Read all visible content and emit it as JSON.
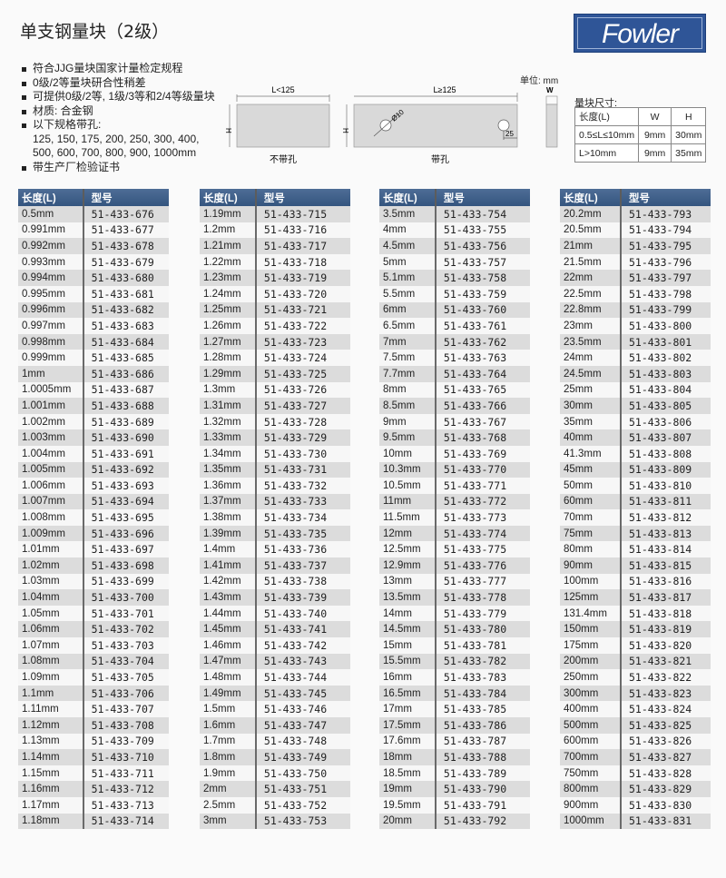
{
  "title": "单支钢量块（2级）",
  "logo": "Fowler",
  "colors": {
    "header": "#3d5a85",
    "logo_bg": "#2f5597",
    "stripe": "#dcdcdc"
  },
  "features": [
    "符合JJG量块国家计量检定规程",
    "0级/2等量块研合性稍差",
    "可提供0级/2等, 1级/3等和2/4等级量块",
    "材质: 合金钢",
    "以下规格带孔:",
    "125, 150, 175, 200, 250, 300, 400,",
    "500, 600, 700, 800, 900, 1000mm",
    "带生产厂检验证书"
  ],
  "diagram": {
    "unit": "单位: mm",
    "left_len": "L<125",
    "left_cap": "不带孔",
    "right_len": "L≥125",
    "right_cap": "带孔",
    "hole": "Ø10",
    "offset": "25",
    "h": "H",
    "w": "W"
  },
  "dims": {
    "caption": "量块尺寸:",
    "headers": [
      "长度(L)",
      "W",
      "H"
    ],
    "rows": [
      [
        "0.5≤L≤10mm",
        "9mm",
        "30mm"
      ],
      [
        "L>10mm",
        "9mm",
        "35mm"
      ]
    ]
  },
  "table_headers": [
    "长度(L)",
    "型号"
  ],
  "tables": [
    [
      [
        "0.5mm",
        "51-433-676"
      ],
      [
        "0.991mm",
        "51-433-677"
      ],
      [
        "0.992mm",
        "51-433-678"
      ],
      [
        "0.993mm",
        "51-433-679"
      ],
      [
        "0.994mm",
        "51-433-680"
      ],
      [
        "0.995mm",
        "51-433-681"
      ],
      [
        "0.996mm",
        "51-433-682"
      ],
      [
        "0.997mm",
        "51-433-683"
      ],
      [
        "0.998mm",
        "51-433-684"
      ],
      [
        "0.999mm",
        "51-433-685"
      ],
      [
        "1mm",
        "51-433-686"
      ],
      [
        "1.0005mm",
        "51-433-687"
      ],
      [
        "1.001mm",
        "51-433-688"
      ],
      [
        "1.002mm",
        "51-433-689"
      ],
      [
        "1.003mm",
        "51-433-690"
      ],
      [
        "1.004mm",
        "51-433-691"
      ],
      [
        "1.005mm",
        "51-433-692"
      ],
      [
        "1.006mm",
        "51-433-693"
      ],
      [
        "1.007mm",
        "51-433-694"
      ],
      [
        "1.008mm",
        "51-433-695"
      ],
      [
        "1.009mm",
        "51-433-696"
      ],
      [
        "1.01mm",
        "51-433-697"
      ],
      [
        "1.02mm",
        "51-433-698"
      ],
      [
        "1.03mm",
        "51-433-699"
      ],
      [
        "1.04mm",
        "51-433-700"
      ],
      [
        "1.05mm",
        "51-433-701"
      ],
      [
        "1.06mm",
        "51-433-702"
      ],
      [
        "1.07mm",
        "51-433-703"
      ],
      [
        "1.08mm",
        "51-433-704"
      ],
      [
        "1.09mm",
        "51-433-705"
      ],
      [
        "1.1mm",
        "51-433-706"
      ],
      [
        "1.11mm",
        "51-433-707"
      ],
      [
        "1.12mm",
        "51-433-708"
      ],
      [
        "1.13mm",
        "51-433-709"
      ],
      [
        "1.14mm",
        "51-433-710"
      ],
      [
        "1.15mm",
        "51-433-711"
      ],
      [
        "1.16mm",
        "51-433-712"
      ],
      [
        "1.17mm",
        "51-433-713"
      ],
      [
        "1.18mm",
        "51-433-714"
      ]
    ],
    [
      [
        "1.19mm",
        "51-433-715"
      ],
      [
        "1.2mm",
        "51-433-716"
      ],
      [
        "1.21mm",
        "51-433-717"
      ],
      [
        "1.22mm",
        "51-433-718"
      ],
      [
        "1.23mm",
        "51-433-719"
      ],
      [
        "1.24mm",
        "51-433-720"
      ],
      [
        "1.25mm",
        "51-433-721"
      ],
      [
        "1.26mm",
        "51-433-722"
      ],
      [
        "1.27mm",
        "51-433-723"
      ],
      [
        "1.28mm",
        "51-433-724"
      ],
      [
        "1.29mm",
        "51-433-725"
      ],
      [
        "1.3mm",
        "51-433-726"
      ],
      [
        "1.31mm",
        "51-433-727"
      ],
      [
        "1.32mm",
        "51-433-728"
      ],
      [
        "1.33mm",
        "51-433-729"
      ],
      [
        "1.34mm",
        "51-433-730"
      ],
      [
        "1.35mm",
        "51-433-731"
      ],
      [
        "1.36mm",
        "51-433-732"
      ],
      [
        "1.37mm",
        "51-433-733"
      ],
      [
        "1.38mm",
        "51-433-734"
      ],
      [
        "1.39mm",
        "51-433-735"
      ],
      [
        "1.4mm",
        "51-433-736"
      ],
      [
        "1.41mm",
        "51-433-737"
      ],
      [
        "1.42mm",
        "51-433-738"
      ],
      [
        "1.43mm",
        "51-433-739"
      ],
      [
        "1.44mm",
        "51-433-740"
      ],
      [
        "1.45mm",
        "51-433-741"
      ],
      [
        "1.46mm",
        "51-433-742"
      ],
      [
        "1.47mm",
        "51-433-743"
      ],
      [
        "1.48mm",
        "51-433-744"
      ],
      [
        "1.49mm",
        "51-433-745"
      ],
      [
        "1.5mm",
        "51-433-746"
      ],
      [
        "1.6mm",
        "51-433-747"
      ],
      [
        "1.7mm",
        "51-433-748"
      ],
      [
        "1.8mm",
        "51-433-749"
      ],
      [
        "1.9mm",
        "51-433-750"
      ],
      [
        "2mm",
        "51-433-751"
      ],
      [
        "2.5mm",
        "51-433-752"
      ],
      [
        "3mm",
        "51-433-753"
      ]
    ],
    [
      [
        "3.5mm",
        "51-433-754"
      ],
      [
        "4mm",
        "51-433-755"
      ],
      [
        "4.5mm",
        "51-433-756"
      ],
      [
        "5mm",
        "51-433-757"
      ],
      [
        "5.1mm",
        "51-433-758"
      ],
      [
        "5.5mm",
        "51-433-759"
      ],
      [
        "6mm",
        "51-433-760"
      ],
      [
        "6.5mm",
        "51-433-761"
      ],
      [
        "7mm",
        "51-433-762"
      ],
      [
        "7.5mm",
        "51-433-763"
      ],
      [
        "7.7mm",
        "51-433-764"
      ],
      [
        "8mm",
        "51-433-765"
      ],
      [
        "8.5mm",
        "51-433-766"
      ],
      [
        "9mm",
        "51-433-767"
      ],
      [
        "9.5mm",
        "51-433-768"
      ],
      [
        "10mm",
        "51-433-769"
      ],
      [
        "10.3mm",
        "51-433-770"
      ],
      [
        "10.5mm",
        "51-433-771"
      ],
      [
        "11mm",
        "51-433-772"
      ],
      [
        "11.5mm",
        "51-433-773"
      ],
      [
        "12mm",
        "51-433-774"
      ],
      [
        "12.5mm",
        "51-433-775"
      ],
      [
        "12.9mm",
        "51-433-776"
      ],
      [
        "13mm",
        "51-433-777"
      ],
      [
        "13.5mm",
        "51-433-778"
      ],
      [
        "14mm",
        "51-433-779"
      ],
      [
        "14.5mm",
        "51-433-780"
      ],
      [
        "15mm",
        "51-433-781"
      ],
      [
        "15.5mm",
        "51-433-782"
      ],
      [
        "16mm",
        "51-433-783"
      ],
      [
        "16.5mm",
        "51-433-784"
      ],
      [
        "17mm",
        "51-433-785"
      ],
      [
        "17.5mm",
        "51-433-786"
      ],
      [
        "17.6mm",
        "51-433-787"
      ],
      [
        "18mm",
        "51-433-788"
      ],
      [
        "18.5mm",
        "51-433-789"
      ],
      [
        "19mm",
        "51-433-790"
      ],
      [
        "19.5mm",
        "51-433-791"
      ],
      [
        "20mm",
        "51-433-792"
      ]
    ],
    [
      [
        "20.2mm",
        "51-433-793"
      ],
      [
        "20.5mm",
        "51-433-794"
      ],
      [
        "21mm",
        "51-433-795"
      ],
      [
        "21.5mm",
        "51-433-796"
      ],
      [
        "22mm",
        "51-433-797"
      ],
      [
        "22.5mm",
        "51-433-798"
      ],
      [
        "22.8mm",
        "51-433-799"
      ],
      [
        "23mm",
        "51-433-800"
      ],
      [
        "23.5mm",
        "51-433-801"
      ],
      [
        "24mm",
        "51-433-802"
      ],
      [
        "24.5mm",
        "51-433-803"
      ],
      [
        "25mm",
        "51-433-804"
      ],
      [
        "30mm",
        "51-433-805"
      ],
      [
        "35mm",
        "51-433-806"
      ],
      [
        "40mm",
        "51-433-807"
      ],
      [
        "41.3mm",
        "51-433-808"
      ],
      [
        "45mm",
        "51-433-809"
      ],
      [
        "50mm",
        "51-433-810"
      ],
      [
        "60mm",
        "51-433-811"
      ],
      [
        "70mm",
        "51-433-812"
      ],
      [
        "75mm",
        "51-433-813"
      ],
      [
        "80mm",
        "51-433-814"
      ],
      [
        "90mm",
        "51-433-815"
      ],
      [
        "100mm",
        "51-433-816"
      ],
      [
        "125mm",
        "51-433-817"
      ],
      [
        "131.4mm",
        "51-433-818"
      ],
      [
        "150mm",
        "51-433-819"
      ],
      [
        "175mm",
        "51-433-820"
      ],
      [
        "200mm",
        "51-433-821"
      ],
      [
        "250mm",
        "51-433-822"
      ],
      [
        "300mm",
        "51-433-823"
      ],
      [
        "400mm",
        "51-433-824"
      ],
      [
        "500mm",
        "51-433-825"
      ],
      [
        "600mm",
        "51-433-826"
      ],
      [
        "700mm",
        "51-433-827"
      ],
      [
        "750mm",
        "51-433-828"
      ],
      [
        "800mm",
        "51-433-829"
      ],
      [
        "900mm",
        "51-433-830"
      ],
      [
        "1000mm",
        "51-433-831"
      ]
    ]
  ]
}
